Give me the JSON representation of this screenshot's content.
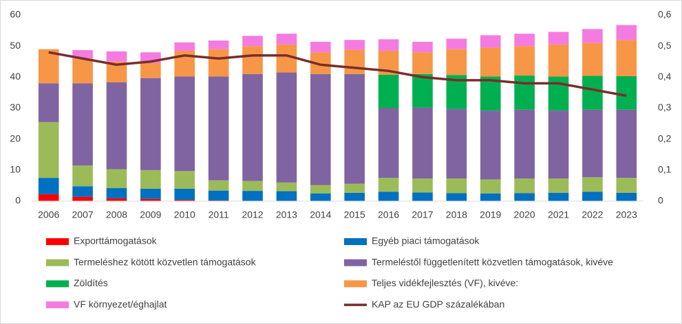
{
  "chart_data": {
    "type": "stacked-bar-line",
    "categories": [
      "2006",
      "2007",
      "2008",
      "2009",
      "2010",
      "2011",
      "2012",
      "2013",
      "2014",
      "2015",
      "2016",
      "2017",
      "2018",
      "2019",
      "2020",
      "2021",
      "2022",
      "2023"
    ],
    "series": [
      {
        "name": "Exporttámogatások",
        "color": "#ff0000",
        "values": [
          2.2,
          1.4,
          0.9,
          0.7,
          0.4,
          0.2,
          0.1,
          0.1,
          0,
          0,
          0,
          0,
          0,
          0,
          0,
          0,
          0,
          0
        ]
      },
      {
        "name": "Egyéb piaci támogatások",
        "color": "#0070c0",
        "values": [
          5.3,
          3.4,
          3.3,
          3.3,
          3.6,
          3.2,
          3.2,
          3.1,
          2.5,
          2.7,
          3.0,
          2.8,
          2.6,
          2.5,
          2.6,
          2.7,
          3.0,
          2.7
        ]
      },
      {
        "name": "Termeléshez kötött közvetlen támogatások",
        "color": "#9bbb59",
        "values": [
          18.0,
          6.7,
          6.1,
          6.0,
          5.7,
          3.3,
          3.2,
          2.8,
          2.7,
          2.9,
          4.5,
          4.5,
          4.7,
          4.5,
          4.7,
          4.6,
          4.7,
          4.8
        ]
      },
      {
        "name": "Termeléstől függetlenített közvetlen támogatások, kivéve",
        "color": "#8064a2",
        "values": [
          12.5,
          26.5,
          28.0,
          29.7,
          30.5,
          33.5,
          34.5,
          35.5,
          35.8,
          35.4,
          22.5,
          22.9,
          22.4,
          22.2,
          22.2,
          21.9,
          21.8,
          22.0
        ]
      },
      {
        "name": "Zöldítés",
        "color": "#00b050",
        "values": [
          0,
          0,
          0,
          0,
          0,
          0,
          0,
          0,
          0,
          0,
          10.8,
          10.8,
          11.0,
          11.0,
          11.0,
          11.0,
          10.9,
          10.8
        ]
      },
      {
        "name": "Teljes vidékfejlesztés (VF), kivéve:",
        "color": "#f79646",
        "values": [
          11,
          8,
          6.7,
          4.8,
          8.3,
          8.8,
          9,
          9,
          7,
          7.8,
          7.7,
          7.0,
          8.3,
          9.3,
          9.5,
          10.3,
          10.6,
          11.7
        ]
      },
      {
        "name": "VF környezet/éghajlat",
        "color": "#f47ce0",
        "values": [
          0,
          2.7,
          3.3,
          3.5,
          2.7,
          2.8,
          3.3,
          3.5,
          3.4,
          3.2,
          3.7,
          3.4,
          3.4,
          4.0,
          4.0,
          4.1,
          4.5,
          4.8
        ]
      },
      {
        "name": "KAP az EU GDP százalékában",
        "color": "#7b2c2c",
        "type": "line",
        "axis": "y2",
        "values": [
          0.48,
          0.46,
          0.44,
          0.45,
          0.47,
          0.46,
          0.47,
          0.47,
          0.44,
          0.43,
          0.42,
          0.4,
          0.39,
          0.39,
          0.38,
          0.38,
          0.36,
          0.34
        ]
      }
    ],
    "ylim": [
      0,
      60
    ],
    "yticks": [
      0,
      10,
      20,
      30,
      40,
      50,
      60
    ],
    "y2lim": [
      0,
      0.6
    ],
    "y2ticks": [
      0,
      {
        "value": 0.1,
        "label": "0,1"
      },
      {
        "value": 0.2,
        "label": "0,2"
      },
      {
        "value": 0.3,
        "label": "0,3"
      },
      {
        "value": 0.4,
        "label": "0,4"
      },
      {
        "value": 0.5,
        "label": "0,5"
      },
      {
        "value": 0.6,
        "label": "0,6"
      }
    ],
    "legend": "bottom"
  }
}
